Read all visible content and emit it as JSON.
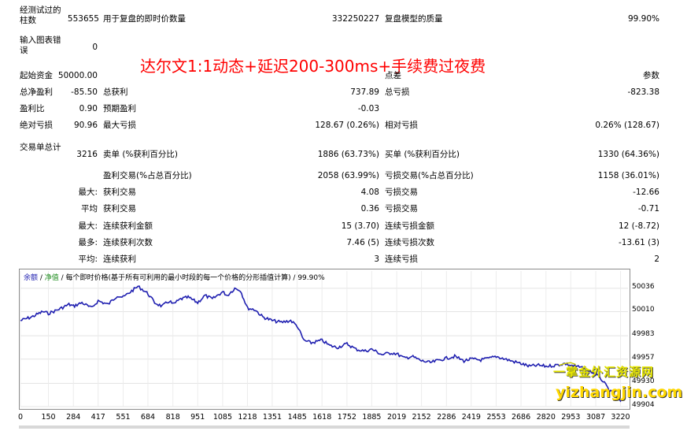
{
  "stats": {
    "bars_label": "经测试过的柱数",
    "bars": "553655",
    "ticks_label": "用于复盘的即时价数量",
    "ticks": "332250227",
    "quality_label": "复盘模型的质量",
    "quality": "99.90%",
    "chart_err_label": "输入图表错误",
    "chart_err": "0",
    "deposit_label": "起始资金",
    "deposit": "50000.00",
    "spread_label": "点差",
    "spread": "参数",
    "net_label": "总净盈利",
    "net": "-85.50",
    "gross_profit_label": "总获利",
    "gross_profit": "737.89",
    "gross_loss_label": "总亏损",
    "gross_loss": "-823.38",
    "pf_label": "盈利比",
    "pf": "0.90",
    "expected_label": "预期盈利",
    "expected": "-0.03",
    "abs_dd_label": "绝对亏损",
    "abs_dd": "90.96",
    "max_dd_label": "最大亏损",
    "max_dd": "128.67 (0.26%)",
    "rel_dd_label": "相对亏损",
    "rel_dd": "0.26% (128.67)",
    "trades_label": "交易单总计",
    "trades": "3216",
    "short_label": "卖单 (%获利百分比)",
    "short": "1886 (63.73%)",
    "long_label": "买单 (%获利百分比)",
    "long": "1330 (64.36%)",
    "win_label": "盈利交易(%占总百分比)",
    "win": "2058 (63.99%)",
    "loss_label": "亏损交易(%占总百分比)",
    "loss": "1158 (36.01%)",
    "r1_prefix": "最大:",
    "r1_a_label": "获利交易",
    "r1_a": "4.08",
    "r1_b_label": "亏损交易",
    "r1_b": "-12.66",
    "r2_prefix": "平均",
    "r2_a_label": "获利交易",
    "r2_a": "0.36",
    "r2_b_label": "亏损交易",
    "r2_b": "-0.71",
    "r3_prefix": "最大:",
    "r3_a_label": "连续获利金额",
    "r3_a": "15 (3.70)",
    "r3_b_label": "连续亏损金额",
    "r3_b": "12 (-8.72)",
    "r4_prefix": "最多:",
    "r4_a_label": "连续获利次数",
    "r4_a": "7.46 (5)",
    "r4_b_label": "连续亏损次数",
    "r4_b": "-13.61 (3)",
    "r5_prefix": "平均:",
    "r5_a_label": "连续获利",
    "r5_a": "3",
    "r5_b_label": "连续亏损",
    "r5_b": "2"
  },
  "banner": "达尔文1:1动态+延迟200-300ms+手续费过夜费",
  "legend": {
    "balance": "余额",
    "sep1": " / ",
    "equity": "净值",
    "rest": " / 每个即时价格(基于所有可利用的最小时段的每一个价格的分形插值计算) / 99.90%"
  },
  "watermark": {
    "line1": "一掌金外汇资源网",
    "line2": "yizhangjin.com"
  },
  "chart_data": {
    "type": "line",
    "x_ticks": [
      "0",
      "150",
      "284",
      "417",
      "551",
      "684",
      "818",
      "951",
      "1085",
      "1218",
      "1351",
      "1485",
      "1618",
      "1752",
      "1885",
      "2019",
      "2152",
      "2286",
      "2419",
      "2553",
      "2686",
      "2820",
      "2953",
      "3087",
      "3220"
    ],
    "y_ticks": [
      "50036",
      "50010",
      "49983",
      "49957",
      "49930",
      "49904"
    ],
    "x_range": [
      0,
      3260
    ],
    "ylim": [
      49904,
      50050
    ],
    "series": [
      {
        "color": "#1f1fb0",
        "x": [
          0,
          60,
          120,
          150,
          200,
          260,
          284,
          330,
          380,
          417,
          470,
          520,
          551,
          590,
          630,
          660,
          684,
          720,
          760,
          800,
          818,
          860,
          900,
          951,
          990,
          1030,
          1070,
          1085,
          1110,
          1150,
          1180,
          1218,
          1260,
          1300,
          1351,
          1400,
          1450,
          1485,
          1520,
          1560,
          1618,
          1660,
          1700,
          1752,
          1800,
          1850,
          1885,
          1940,
          1990,
          2019,
          2060,
          2100,
          2152,
          2200,
          2250,
          2286,
          2330,
          2380,
          2419,
          2470,
          2520,
          2553,
          2600,
          2650,
          2686,
          2730,
          2780,
          2820,
          2870,
          2920,
          2953,
          3000,
          3050,
          3087,
          3120,
          3160,
          3190,
          3220,
          3240
        ],
        "y": [
          50000,
          50004,
          50010,
          50008,
          50012,
          50018,
          50016,
          50020,
          50014,
          50022,
          50018,
          50028,
          50026,
          50032,
          50038,
          50034,
          50030,
          50020,
          50016,
          50022,
          50018,
          50024,
          50026,
          50020,
          50028,
          50024,
          50030,
          50032,
          50028,
          50036,
          50034,
          50014,
          50012,
          50004,
          50000,
          49998,
          50000,
          49994,
          49978,
          49975,
          49978,
          49972,
          49970,
          49974,
          49968,
          49966,
          49968,
          49962,
          49964,
          49963,
          49958,
          49960,
          49955,
          49953,
          49956,
          49958,
          49960,
          49955,
          49957,
          49956,
          49958,
          49960,
          49957,
          49954,
          49952,
          49949,
          49950,
          49949,
          49950,
          49952,
          49950,
          49948,
          49944,
          49940,
          49934,
          49922,
          49916,
          49910,
          49912
        ]
      },
      {
        "color": "#c8c800",
        "x": [
          2890,
          2920,
          2953,
          2980
        ],
        "y": [
          49950,
          49952,
          49953,
          49951
        ]
      }
    ]
  }
}
